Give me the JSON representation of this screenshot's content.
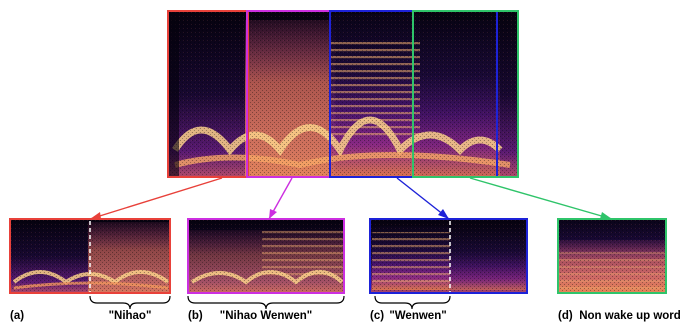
{
  "figure": {
    "colors": {
      "red": "#e8413a",
      "magenta": "#cc2fe0",
      "blue": "#1d22d8",
      "green": "#2fc46a",
      "spectro_dark": "#0a0418"
    },
    "panels": [
      {
        "id": "a",
        "tag": "(a)",
        "caption": "\"Nihao\"",
        "color": "red"
      },
      {
        "id": "b",
        "tag": "(b)",
        "caption": "\"Nihao Wenwen\"",
        "color": "magenta"
      },
      {
        "id": "c",
        "tag": "(c)",
        "caption": "\"Wenwen\"",
        "color": "blue"
      },
      {
        "id": "d",
        "tag": "(d)",
        "caption": "Non wake up word",
        "color": "green"
      }
    ]
  }
}
